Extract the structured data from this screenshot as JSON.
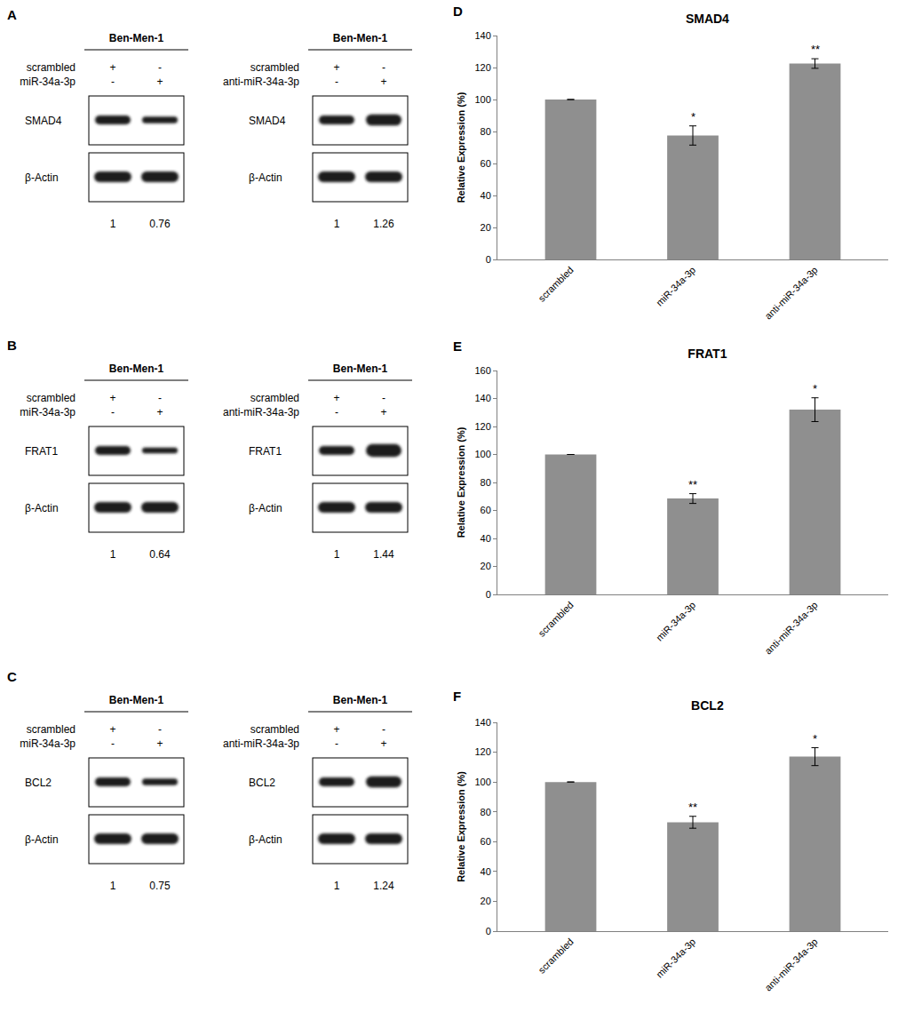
{
  "chart_data": [
    {
      "type": "bar",
      "label": "D",
      "title": "SMAD4",
      "categories": [
        "scrambled",
        "miR-34a-3p",
        "anti-miR-34a-3p"
      ],
      "values": [
        100,
        77.5,
        122.5
      ],
      "error": [
        0,
        6,
        3
      ],
      "significance": [
        null,
        "*",
        "**"
      ],
      "color": "#8f8f8f",
      "y_label": "Relative Expression (%)",
      "ylim": [
        0,
        140
      ],
      "yticks": [
        0,
        20,
        40,
        60,
        80,
        100,
        120,
        140
      ],
      "grid": false
    },
    {
      "type": "bar",
      "label": "E",
      "title": "FRAT1",
      "categories": [
        "scrambled",
        "miR-34a-3p",
        "anti-miR-34a-3p"
      ],
      "values": [
        100,
        68.5,
        132
      ],
      "error": [
        0,
        3.5,
        8.5
      ],
      "significance": [
        null,
        "**",
        "*"
      ],
      "color": "#8f8f8f",
      "y_label": "Relative Expression (%)",
      "ylim": [
        0,
        160
      ],
      "yticks": [
        0,
        20,
        40,
        60,
        80,
        100,
        120,
        140,
        160
      ],
      "grid": false
    },
    {
      "type": "bar",
      "label": "F",
      "title": "BCL2",
      "categories": [
        "scrambled",
        "miR-34a-3p",
        "anti-miR-34a-3p"
      ],
      "values": [
        100,
        73,
        117
      ],
      "error": [
        0,
        4,
        6
      ],
      "significance": [
        null,
        "**",
        "*"
      ],
      "color": "#8f8f8f",
      "y_label": "Relative Expression (%)",
      "ylim": [
        0,
        140
      ],
      "yticks": [
        0,
        20,
        40,
        60,
        80,
        100,
        120,
        140
      ],
      "grid": false
    }
  ],
  "blots": [
    {
      "label": "A",
      "gels": [
        {
          "header": "Ben-Men-1",
          "rows": [
            {
              "name": "scrambled",
              "lanes": [
                "+",
                "-"
              ]
            },
            {
              "name": "miR-34a-3p",
              "lanes": [
                "-",
                "+"
              ]
            }
          ],
          "proteins": [
            "SMAD4",
            "β-Actin"
          ],
          "quantification": [
            1,
            0.76
          ]
        },
        {
          "header": "Ben-Men-1",
          "rows": [
            {
              "name": "scrambled",
              "lanes": [
                "+",
                "-"
              ]
            },
            {
              "name": "anti-miR-34a-3p",
              "lanes": [
                "-",
                "+"
              ]
            }
          ],
          "proteins": [
            "SMAD4",
            "β-Actin"
          ],
          "quantification": [
            1,
            1.26
          ]
        }
      ]
    },
    {
      "label": "B",
      "gels": [
        {
          "header": "Ben-Men-1",
          "rows": [
            {
              "name": "scrambled",
              "lanes": [
                "+",
                "-"
              ]
            },
            {
              "name": "miR-34a-3p",
              "lanes": [
                "-",
                "+"
              ]
            }
          ],
          "proteins": [
            "FRAT1",
            "β-Actin"
          ],
          "quantification": [
            1,
            0.64
          ]
        },
        {
          "header": "Ben-Men-1",
          "rows": [
            {
              "name": "scrambled",
              "lanes": [
                "+",
                "-"
              ]
            },
            {
              "name": "anti-miR-34a-3p",
              "lanes": [
                "-",
                "+"
              ]
            }
          ],
          "proteins": [
            "FRAT1",
            "β-Actin"
          ],
          "quantification": [
            1,
            1.44
          ]
        }
      ]
    },
    {
      "label": "C",
      "gels": [
        {
          "header": "Ben-Men-1",
          "rows": [
            {
              "name": "scrambled",
              "lanes": [
                "+",
                "-"
              ]
            },
            {
              "name": "miR-34a-3p",
              "lanes": [
                "-",
                "+"
              ]
            }
          ],
          "proteins": [
            "BCL2",
            "β-Actin"
          ],
          "quantification": [
            1,
            0.75
          ]
        },
        {
          "header": "Ben-Men-1",
          "rows": [
            {
              "name": "scrambled",
              "lanes": [
                "+",
                "-"
              ]
            },
            {
              "name": "anti-miR-34a-3p",
              "lanes": [
                "-",
                "+"
              ]
            }
          ],
          "proteins": [
            "BCL2",
            "β-Actin"
          ],
          "quantification": [
            1,
            1.24
          ]
        }
      ]
    }
  ]
}
